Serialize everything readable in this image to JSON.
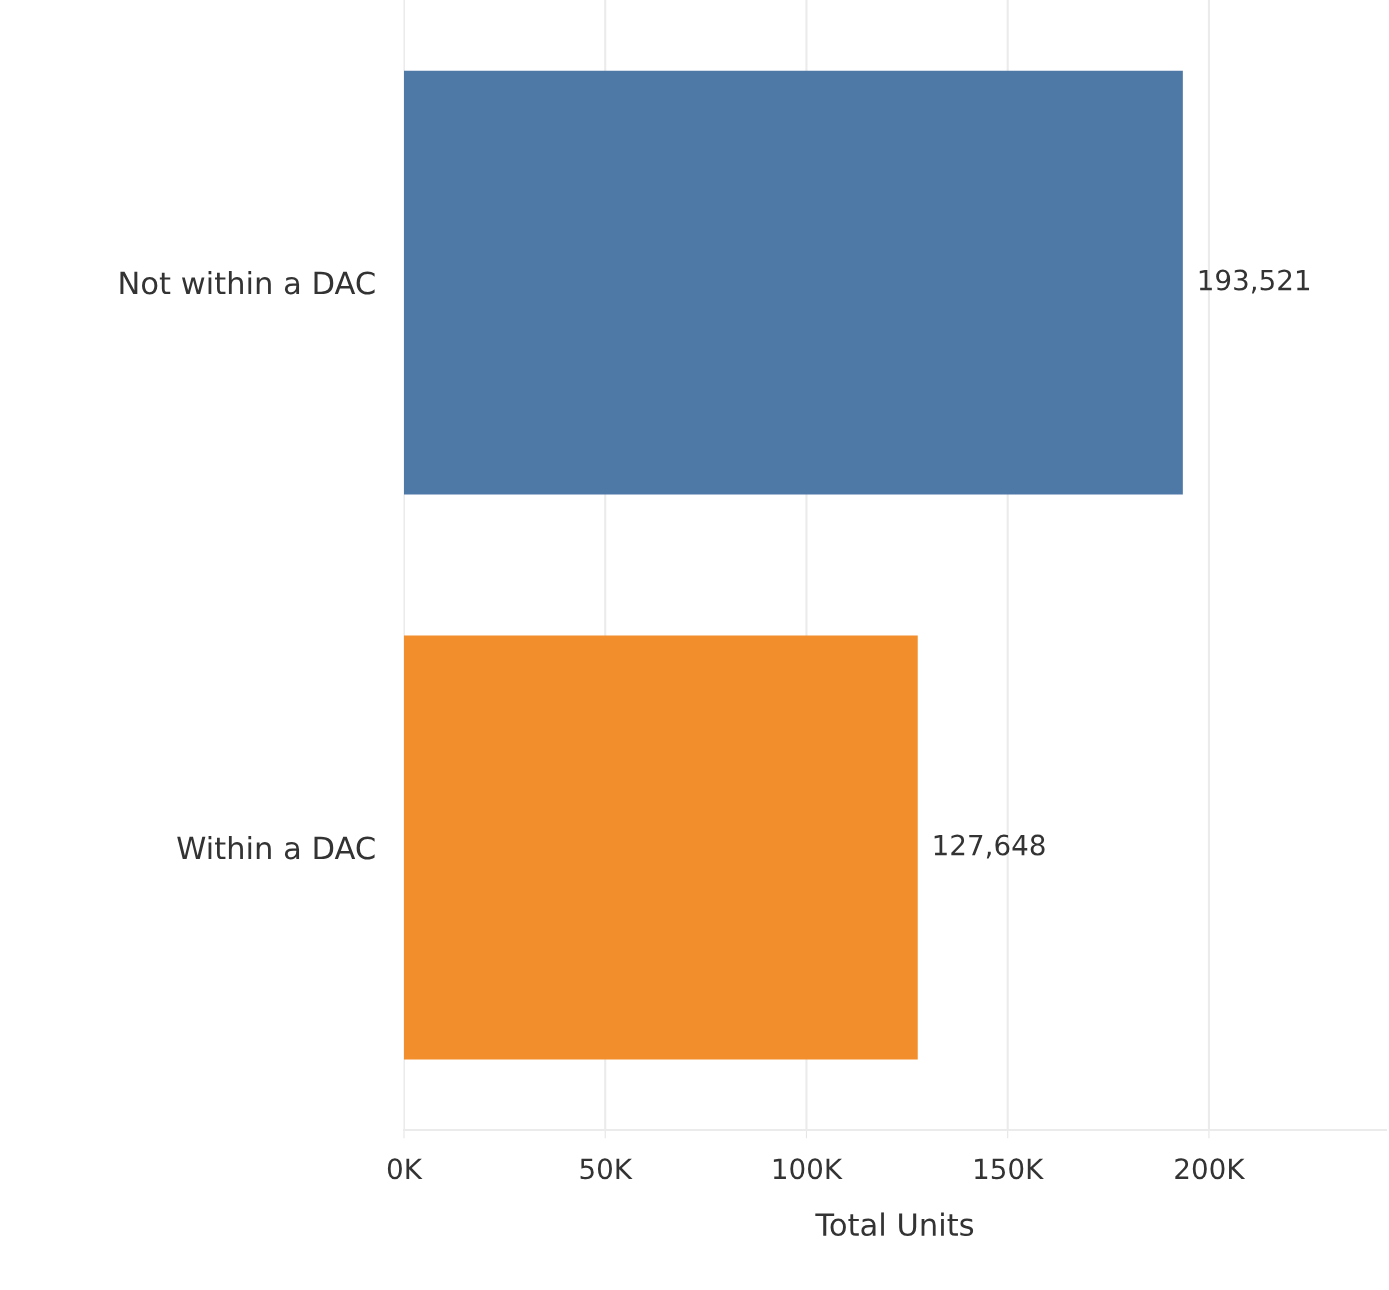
{
  "chart_data": {
    "type": "bar",
    "orientation": "horizontal",
    "xlabel": "Total Units",
    "categories": [
      "Not within a DAC",
      "Within a DAC"
    ],
    "values": [
      193521,
      127648
    ],
    "colors": [
      "#4e79a7",
      "#f28e2b"
    ],
    "value_labels": [
      "193,521",
      "127,648"
    ],
    "xlim": [
      0,
      244000
    ],
    "xticks": [
      {
        "value": 0,
        "label": "0K"
      },
      {
        "value": 50000,
        "label": "50K"
      },
      {
        "value": 100000,
        "label": "100K"
      },
      {
        "value": 150000,
        "label": "150K"
      },
      {
        "value": 200000,
        "label": "200K"
      }
    ],
    "grid": "x"
  }
}
